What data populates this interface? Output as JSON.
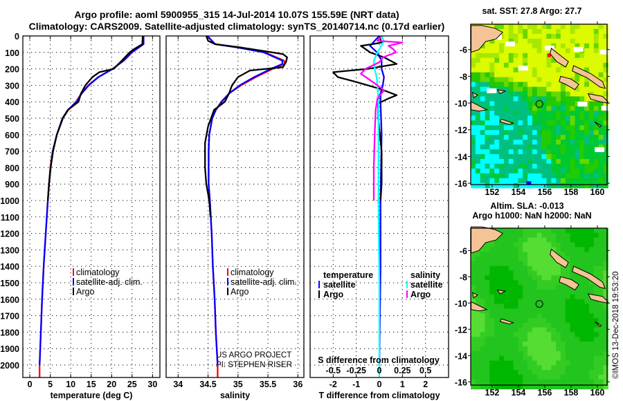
{
  "title_line1": "Argo profile: aoml 5900955_315 14-Jul-2014 10.07S 155.59E (NRT data)",
  "title_line2": "Climatology: CARS2009. Satellite-adjusted climatology: synTS_20140714.nc (0.17d earlier)",
  "credit_line1": "US ARGO PROJECT",
  "credit_line2": "PI: STEPHEN RISER",
  "copyright": "©IMOS 13-Dec-2018 19:53:20",
  "colors": {
    "climatology": "#ff0000",
    "satellite": "#0000ff",
    "argo": "#000000",
    "s_satellite": "#00ffff",
    "s_argo": "#ff00ff"
  },
  "chart_data": [
    {
      "type": "line",
      "id": "temperature",
      "xlabel": "temperature (deg C)",
      "ylabel": "depth",
      "xlim": [
        -1.7,
        31.8
      ],
      "ylim": [
        2076,
        0
      ],
      "xticks": [
        0,
        5,
        10,
        15,
        20,
        25,
        30
      ],
      "xtick_labels": [
        "0",
        "5",
        "10",
        "15",
        "20",
        "25",
        "30"
      ],
      "yticks": [
        0,
        100,
        200,
        300,
        400,
        500,
        600,
        700,
        800,
        900,
        1000,
        1100,
        1200,
        1300,
        1400,
        1500,
        1600,
        1700,
        1800,
        1900,
        2000
      ],
      "ytick_labels": [
        "0",
        "100",
        "200",
        "300",
        "400",
        "500",
        "600",
        "700",
        "800",
        "900",
        "1000",
        "1100",
        "1200",
        "1300",
        "1400",
        "1500",
        "1600",
        "1700",
        "1800",
        "1900",
        "2000"
      ],
      "legend": [
        "climatology",
        "satellite-adj. clim.",
        "Argo"
      ],
      "series": [
        {
          "name": "climatology",
          "color": "#ff0000",
          "depth": [
            0,
            50,
            100,
            150,
            200,
            250,
            300,
            350,
            400,
            450,
            500,
            600,
            700,
            800,
            900,
            1000,
            1200,
            1400,
            1600,
            1800,
            2000,
            2076
          ],
          "values": [
            27.7,
            27.7,
            25.0,
            23.0,
            20.2,
            16.7,
            14.3,
            12.6,
            11.3,
            9.4,
            8.1,
            6.6,
            5.6,
            5.0,
            4.7,
            4.4,
            3.9,
            3.4,
            3.0,
            2.7,
            2.4,
            2.4
          ]
        },
        {
          "name": "satellite-adj. clim.",
          "color": "#0000ff",
          "depth": [
            0,
            50,
            100,
            150,
            200,
            250,
            300,
            350,
            400,
            450,
            500,
            600,
            700,
            800,
            900,
            1000,
            1200,
            1400,
            1600,
            1800,
            2000
          ],
          "values": [
            27.8,
            27.8,
            24.9,
            22.9,
            20.3,
            16.8,
            14.4,
            12.7,
            11.4,
            9.3,
            8.1,
            6.6,
            5.6,
            5.1,
            4.7,
            4.4,
            3.9,
            3.4,
            3.0,
            2.7,
            2.4
          ]
        },
        {
          "name": "Argo",
          "color": "#000000",
          "depth": [
            0,
            50,
            80,
            100,
            150,
            200,
            220,
            250,
            300,
            350,
            400,
            450,
            500,
            600,
            700,
            800,
            900,
            1000
          ],
          "values": [
            27.6,
            27.5,
            25.5,
            24.4,
            22.5,
            20.5,
            17.0,
            15.3,
            13.6,
            12.5,
            11.9,
            9.3,
            8.0,
            6.6,
            5.7,
            5.1,
            4.7,
            4.4
          ]
        }
      ]
    },
    {
      "type": "line",
      "id": "salinity",
      "xlabel": "salinity",
      "ylabel": "depth",
      "xlim": [
        33.8,
        36.1
      ],
      "ylim": [
        2076,
        0
      ],
      "xticks": [
        34,
        34.5,
        35,
        35.5,
        36
      ],
      "xtick_labels": [
        "34",
        "34.5",
        "35",
        "35.5",
        "36"
      ],
      "legend": [
        "climatology",
        "satellite-adj. clim.",
        "Argo"
      ],
      "series": [
        {
          "name": "climatology",
          "color": "#ff0000",
          "depth": [
            0,
            50,
            70,
            100,
            150,
            170,
            200,
            250,
            300,
            350,
            400,
            450,
            500,
            600,
            700,
            900,
            1000,
            1200,
            1400,
            1600,
            1800,
            2000,
            2076
          ],
          "values": [
            34.48,
            34.62,
            35.0,
            35.45,
            35.77,
            35.78,
            35.58,
            35.3,
            35.05,
            34.85,
            34.72,
            34.63,
            34.57,
            34.52,
            34.51,
            34.51,
            34.53,
            34.56,
            34.58,
            34.61,
            34.63,
            34.66,
            34.66
          ]
        },
        {
          "name": "satellite-adj. clim.",
          "color": "#0000ff",
          "depth": [
            0,
            50,
            70,
            100,
            150,
            170,
            200,
            250,
            300,
            350,
            400,
            450,
            500,
            600,
            700,
            900,
            1000,
            1200,
            1400,
            1600,
            1800,
            2000
          ],
          "values": [
            34.49,
            34.62,
            35.0,
            35.43,
            35.74,
            35.74,
            35.55,
            35.27,
            35.03,
            34.85,
            34.73,
            34.63,
            34.57,
            34.52,
            34.51,
            34.51,
            34.53,
            34.56,
            34.58,
            34.61,
            34.63,
            34.66
          ]
        },
        {
          "name": "Argo",
          "color": "#000000",
          "depth": [
            0,
            30,
            50,
            70,
            90,
            110,
            130,
            160,
            190,
            210,
            250,
            300,
            350,
            400,
            450,
            550,
            650,
            800,
            900,
            1000,
            1100
          ],
          "values": [
            34.47,
            34.5,
            34.62,
            35.05,
            35.4,
            35.75,
            35.82,
            35.8,
            35.75,
            35.2,
            35.0,
            34.9,
            34.85,
            34.78,
            34.6,
            34.5,
            34.45,
            34.45,
            34.47,
            34.52,
            34.54
          ]
        }
      ]
    },
    {
      "type": "line",
      "id": "difference",
      "xlabel": "T difference from climatology",
      "x2label": "S difference from climatology",
      "ylabel": "depth",
      "xlim": [
        -3,
        3
      ],
      "x2lim": [
        -0.75,
        0.75
      ],
      "ylim": [
        2076,
        0
      ],
      "xticks": [
        -2,
        -1,
        0,
        1,
        2
      ],
      "xtick_labels": [
        "-2",
        "-1",
        "0",
        "1",
        "2"
      ],
      "x2ticks": [
        -0.5,
        -0.25,
        0,
        0.25,
        0.5
      ],
      "x2tick_labels": [
        "-0.5",
        "-0.25",
        "0",
        "0.25",
        "0.5"
      ],
      "legend_temperature_title": "temperature",
      "legend_salinity_title": "salinity",
      "legend_temperature": [
        "satellite",
        "Argo"
      ],
      "legend_salinity": [
        "satellite",
        "Argo"
      ],
      "series": [
        {
          "name": "T satellite",
          "axis": "T",
          "color": "#0000ff",
          "depth": [
            0,
            30,
            60,
            100,
            150,
            200,
            250,
            300,
            350,
            400,
            600,
            1000,
            1400,
            2000
          ],
          "values": [
            0,
            -0.2,
            -0.4,
            -0.1,
            0.1,
            0.1,
            0.2,
            0.15,
            0.05,
            0.05,
            0.1,
            0.05,
            0.05,
            0.0
          ]
        },
        {
          "name": "T Argo",
          "axis": "T",
          "color": "#000000",
          "depth": [
            0,
            40,
            50,
            60,
            80,
            100,
            130,
            170,
            200,
            220,
            250,
            280,
            320,
            360,
            380,
            410,
            500,
            700,
            900,
            1000
          ],
          "values": [
            0,
            0.1,
            -0.3,
            -0.8,
            -0.6,
            -0.4,
            0.2,
            0.75,
            -0.5,
            -2.0,
            -1.8,
            -1.0,
            0.0,
            0.75,
            0.4,
            -0.05,
            -0.05,
            0.1,
            0.1,
            0.05
          ]
        },
        {
          "name": "S satellite",
          "axis": "S",
          "color": "#00ffff",
          "depth": [
            0,
            30,
            60,
            100,
            150,
            200,
            250,
            300,
            400,
            600,
            1000,
            1500,
            2000
          ],
          "values": [
            0.02,
            0.05,
            0.02,
            -0.02,
            -0.06,
            -0.05,
            -0.03,
            -0.02,
            -0.01,
            -0.01,
            -0.01,
            0.0,
            0.0
          ],
          "to_bottom": true
        },
        {
          "name": "S Argo",
          "axis": "S",
          "color": "#ff00ff",
          "depth": [
            0,
            30,
            40,
            60,
            80,
            100,
            130,
            160,
            200,
            230,
            260,
            300,
            330,
            380,
            450,
            600,
            800,
            1000
          ],
          "values": [
            0.02,
            -0.02,
            0.25,
            0.1,
            0.15,
            0.18,
            0.04,
            0.0,
            -0.15,
            -0.2,
            -0.12,
            -0.02,
            0.05,
            -0.02,
            -0.04,
            -0.05,
            -0.06,
            -0.06
          ]
        }
      ]
    },
    {
      "type": "heatmap",
      "id": "sst_map",
      "title": "sat. SST: 27.8 Argo: 27.7",
      "xlim": [
        150.37,
        160.74
      ],
      "ylim": [
        -16.1,
        -4.1
      ],
      "xticks": [
        152,
        154,
        156,
        158,
        160
      ],
      "xtick_labels": [
        "152",
        "154",
        "156",
        "158",
        "160"
      ],
      "yticks": [
        -6,
        -8,
        -10,
        -12,
        -14,
        -16
      ],
      "ytick_labels": [
        "-6",
        "-8",
        "-10",
        "-12",
        "-14",
        "-16"
      ],
      "float_position": [
        155.59,
        -10.07
      ]
    },
    {
      "type": "heatmap",
      "id": "sla_map",
      "title": "Altim. SLA: -0.013",
      "subtitle": "Argo h1000: NaN h2000: NaN",
      "xlim": [
        150.37,
        160.74
      ],
      "ylim": [
        -16.25,
        -4.3
      ],
      "xticks": [
        152,
        154,
        156,
        158,
        160
      ],
      "xtick_labels": [
        "152",
        "154",
        "156",
        "158",
        "160"
      ],
      "yticks": [
        -6,
        -8,
        -10,
        -12,
        -14,
        -16
      ],
      "ytick_labels": [
        "-6",
        "-8",
        "-10",
        "-12",
        "-14",
        "-16"
      ],
      "float_position": [
        155.59,
        -10.07
      ]
    }
  ]
}
